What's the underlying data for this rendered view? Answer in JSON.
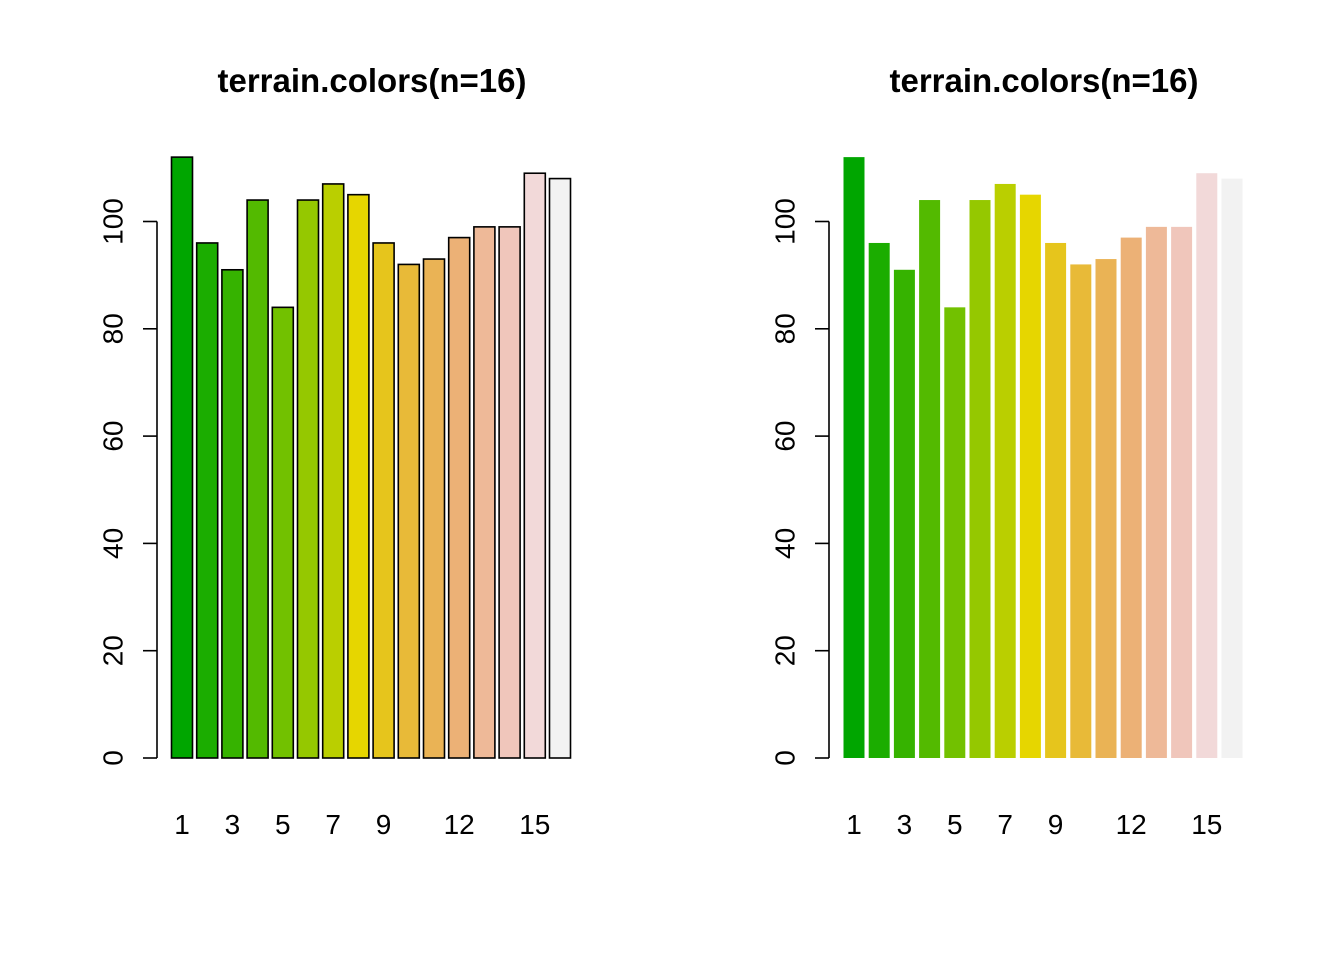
{
  "chart_data": [
    {
      "type": "bar",
      "title": "terrain.colors(n=16)",
      "xlabel": "",
      "ylabel": "",
      "bar_border": true,
      "categories": [
        "1",
        "2",
        "3",
        "4",
        "5",
        "6",
        "7",
        "8",
        "9",
        "10",
        "11",
        "12",
        "13",
        "14",
        "15",
        "16"
      ],
      "shown_x_labels": [
        "1",
        "3",
        "5",
        "7",
        "9",
        "12",
        "15"
      ],
      "values": [
        112,
        96,
        91,
        104,
        84,
        104,
        107,
        105,
        96,
        92,
        93,
        97,
        99,
        99,
        109,
        108
      ],
      "colors": [
        "#00A600",
        "#1BAD00",
        "#36B300",
        "#53BA00",
        "#72C100",
        "#95C800",
        "#BACF00",
        "#E6D600",
        "#E6C51C",
        "#E8BA38",
        "#EAB355",
        "#ECB176",
        "#EEB998",
        "#F0C6BB",
        "#F2D9D9",
        "#F2F2F2"
      ],
      "y_ticks": [
        "0",
        "20",
        "40",
        "60",
        "80",
        "100"
      ],
      "ylim": [
        0,
        112
      ],
      "grid": false
    },
    {
      "type": "bar",
      "title": "terrain.colors(n=16)",
      "xlabel": "",
      "ylabel": "",
      "bar_border": false,
      "categories": [
        "1",
        "2",
        "3",
        "4",
        "5",
        "6",
        "7",
        "8",
        "9",
        "10",
        "11",
        "12",
        "13",
        "14",
        "15",
        "16"
      ],
      "shown_x_labels": [
        "1",
        "3",
        "5",
        "7",
        "9",
        "12",
        "15"
      ],
      "values": [
        112,
        96,
        91,
        104,
        84,
        104,
        107,
        105,
        96,
        92,
        93,
        97,
        99,
        99,
        109,
        108
      ],
      "colors": [
        "#00A600",
        "#1BAD00",
        "#36B300",
        "#53BA00",
        "#72C100",
        "#95C800",
        "#BACF00",
        "#E6D600",
        "#E6C51C",
        "#E8BA38",
        "#EAB355",
        "#ECB176",
        "#EEB998",
        "#F0C6BB",
        "#F2D9D9",
        "#F2F2F2"
      ],
      "y_ticks": [
        "0",
        "20",
        "40",
        "60",
        "80",
        "100"
      ],
      "ylim": [
        0,
        112
      ],
      "grid": false
    }
  ]
}
